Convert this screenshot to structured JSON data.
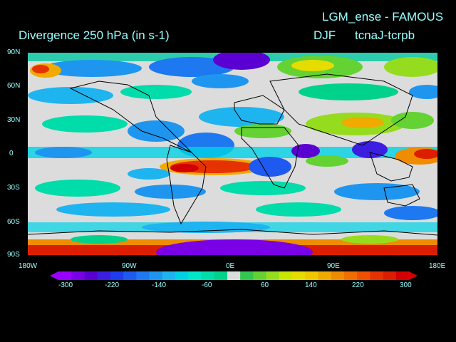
{
  "titles": {
    "top_right": "LGM_ense - FAMOUS",
    "left": "Divergence   250 hPa  (in s-1)",
    "season": "DJF",
    "experiment": "tcnaJ-tcrpb"
  },
  "map": {
    "field": "Divergence",
    "level": "250 hPa",
    "units": "s-1",
    "projection": "lat-lon",
    "lat_range": [
      -90,
      90
    ],
    "lon_range": [
      -180,
      180
    ],
    "background_color": "#dcdcdc",
    "coastline_color": "#000000"
  },
  "axes": {
    "y_labels": [
      "90N",
      "60N",
      "30N",
      "0",
      "30S",
      "60S",
      "90S"
    ],
    "x_labels": [
      "180W",
      "90W",
      "0E",
      "90E",
      "180E"
    ]
  },
  "colorbar": {
    "labels": [
      "-300",
      "-220",
      "-140",
      "-60",
      "60",
      "140",
      "220",
      "300"
    ],
    "colors": [
      "#9a00ff",
      "#7a00e6",
      "#5a00d2",
      "#3c1ee0",
      "#1e3cf0",
      "#1e5af0",
      "#1e78f0",
      "#1e96f0",
      "#1eb4f0",
      "#00d2e6",
      "#00e6c8",
      "#00dcaa",
      "#00d28c",
      "#32c850",
      "#64d232",
      "#96dc1e",
      "#c8e600",
      "#e6dc00",
      "#f0c800",
      "#f0aa00",
      "#f08c00",
      "#f06e00",
      "#f05000",
      "#e63200",
      "#dc1e00",
      "#d20000"
    ],
    "neutral": "#dcdcdc"
  }
}
